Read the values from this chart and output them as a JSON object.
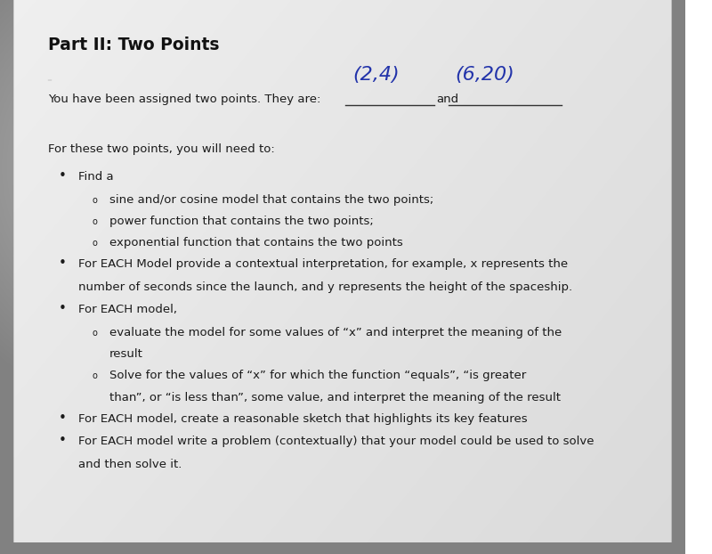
{
  "title": "Part II: Two Points",
  "bg_gradient_top": "#c8c8c8",
  "bg_gradient_bottom": "#b0b0b0",
  "paper_color_main": "#e2e2e2",
  "paper_color_light": "#efefef",
  "title_color": "#111111",
  "text_color": "#1a1a1a",
  "handwritten_color": "#2233aa",
  "assigned_line": "You have been assigned two points. They are:",
  "point1": "(2,4)",
  "point2": "(6,20)",
  "intro_line": "For these two points, you will need to:",
  "bullets": [
    {
      "text": "Find a",
      "sub_bullets": [
        "sine and/or cosine model that contains the two points;",
        "power function that contains the two points;",
        "exponential function that contains the two points"
      ]
    },
    {
      "text": "For EACH Model provide a contextual interpretation, for example, x represents the number of seconds since the launch, and y represents the height of the spaceship.",
      "sub_bullets": []
    },
    {
      "text": "For EACH model,",
      "sub_bullets": [
        "evaluate the model for some values of “x” and interpret the meaning of the result",
        "Solve for the values of “x” for which the function “equals”, “is greater than”, or “is less than”, some value, and interpret the meaning of the result"
      ]
    },
    {
      "text": "For EACH model, create a reasonable sketch that highlights its key features",
      "sub_bullets": []
    },
    {
      "text": "For EACH model write a problem (contextually) that your model could be used to solve and then solve it.",
      "sub_bullets": []
    }
  ],
  "fig_width": 8.0,
  "fig_height": 6.22,
  "dpi": 100
}
